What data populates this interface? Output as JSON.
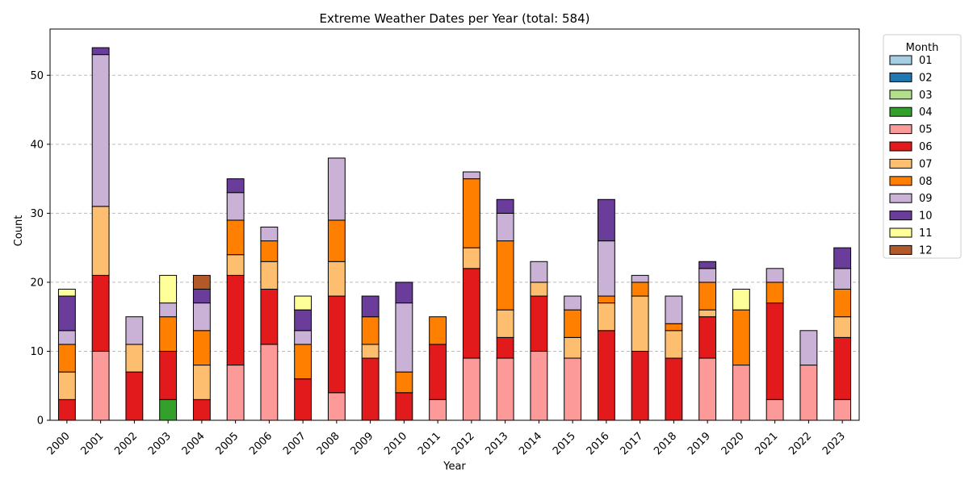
{
  "chart_data": {
    "type": "bar",
    "stacked": true,
    "title": "Extreme Weather Dates per Year (total: 584)",
    "xlabel": "Year",
    "ylabel": "Count",
    "ylim": [
      0,
      56.7
    ],
    "yticks": [
      0,
      10,
      20,
      30,
      40,
      50
    ],
    "grid": "y-dashed",
    "legend": {
      "title": "Month",
      "placement": "outside-top-right"
    },
    "categories": [
      "2000",
      "2001",
      "2002",
      "2003",
      "2004",
      "2005",
      "2006",
      "2007",
      "2008",
      "2009",
      "2010",
      "2011",
      "2012",
      "2013",
      "2014",
      "2015",
      "2016",
      "2017",
      "2018",
      "2019",
      "2020",
      "2021",
      "2022",
      "2023"
    ],
    "series": [
      {
        "name": "01",
        "color": "#a6cee3",
        "values": [
          0,
          0,
          0,
          0,
          0,
          0,
          0,
          0,
          0,
          0,
          0,
          0,
          0,
          0,
          0,
          0,
          0,
          0,
          0,
          0,
          0,
          0,
          0,
          0
        ]
      },
      {
        "name": "02",
        "color": "#1f78b4",
        "values": [
          0,
          0,
          0,
          0,
          0,
          0,
          0,
          0,
          0,
          0,
          0,
          0,
          0,
          0,
          0,
          0,
          0,
          0,
          0,
          0,
          0,
          0,
          0,
          0
        ]
      },
      {
        "name": "03",
        "color": "#b2df8a",
        "values": [
          0,
          0,
          0,
          0,
          0,
          0,
          0,
          0,
          0,
          0,
          0,
          0,
          0,
          0,
          0,
          0,
          0,
          0,
          0,
          0,
          0,
          0,
          0,
          0
        ]
      },
      {
        "name": "04",
        "color": "#33a02c",
        "values": [
          0,
          0,
          0,
          3,
          0,
          0,
          0,
          0,
          0,
          0,
          0,
          0,
          0,
          0,
          0,
          0,
          0,
          0,
          0,
          0,
          0,
          0,
          0,
          0
        ]
      },
      {
        "name": "05",
        "color": "#fb9a99",
        "values": [
          0,
          10,
          0,
          0,
          0,
          8,
          11,
          0,
          4,
          0,
          0,
          3,
          9,
          9,
          10,
          9,
          0,
          0,
          0,
          9,
          8,
          3,
          8,
          3
        ]
      },
      {
        "name": "06",
        "color": "#e31a1c",
        "values": [
          3,
          11,
          7,
          7,
          3,
          13,
          8,
          6,
          14,
          9,
          4,
          8,
          13,
          3,
          8,
          0,
          13,
          10,
          9,
          6,
          0,
          14,
          0,
          9
        ]
      },
      {
        "name": "07",
        "color": "#fdbf6f",
        "values": [
          4,
          10,
          4,
          0,
          5,
          3,
          4,
          0,
          5,
          2,
          0,
          0,
          3,
          4,
          2,
          3,
          4,
          8,
          4,
          1,
          0,
          0,
          0,
          3
        ]
      },
      {
        "name": "08",
        "color": "#ff7f00",
        "values": [
          4,
          0,
          0,
          5,
          5,
          5,
          3,
          5,
          6,
          4,
          3,
          4,
          10,
          10,
          0,
          4,
          1,
          2,
          1,
          4,
          8,
          3,
          0,
          4
        ]
      },
      {
        "name": "09",
        "color": "#cab2d6",
        "values": [
          2,
          22,
          4,
          2,
          4,
          4,
          2,
          2,
          9,
          0,
          10,
          0,
          1,
          4,
          3,
          2,
          8,
          1,
          4,
          2,
          0,
          2,
          5,
          3
        ]
      },
      {
        "name": "10",
        "color": "#6a3d9a",
        "values": [
          5,
          1,
          0,
          0,
          2,
          2,
          0,
          3,
          0,
          3,
          3,
          0,
          0,
          2,
          0,
          0,
          6,
          0,
          0,
          1,
          0,
          0,
          0,
          3
        ]
      },
      {
        "name": "11",
        "color": "#ffff99",
        "values": [
          1,
          0,
          0,
          4,
          0,
          0,
          0,
          2,
          0,
          0,
          0,
          0,
          0,
          0,
          0,
          0,
          0,
          0,
          0,
          0,
          3,
          0,
          0,
          0
        ]
      },
      {
        "name": "12",
        "color": "#b15928",
        "values": [
          0,
          0,
          0,
          0,
          2,
          0,
          0,
          0,
          0,
          0,
          0,
          0,
          0,
          0,
          0,
          0,
          0,
          0,
          0,
          0,
          0,
          0,
          0,
          0
        ]
      }
    ]
  }
}
